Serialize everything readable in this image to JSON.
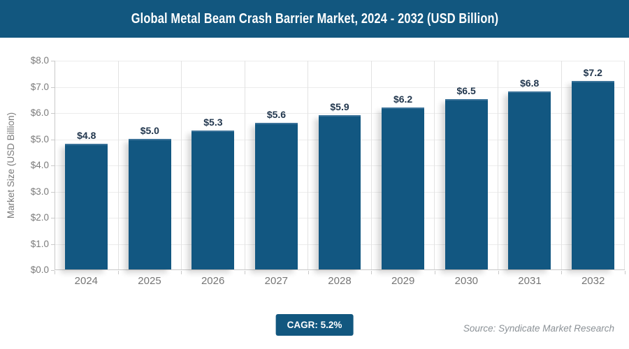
{
  "header": {
    "title": "Global Metal Beam Crash Barrier Market, 2024 - 2032 (USD Billion)",
    "bg_color": "#12577F"
  },
  "chart_data": {
    "type": "bar",
    "title": "Global Metal Beam Crash Barrier Market, 2024 - 2032 (USD Billion)",
    "categories": [
      "2024",
      "2025",
      "2026",
      "2027",
      "2028",
      "2029",
      "2030",
      "2031",
      "2032"
    ],
    "values": [
      4.8,
      5.0,
      5.3,
      5.6,
      5.9,
      6.2,
      6.5,
      6.8,
      7.2
    ],
    "value_labels": [
      "$4.8",
      "$5.0",
      "$5.3",
      "$5.6",
      "$5.9",
      "$6.2",
      "$6.5",
      "$6.8",
      "$7.2"
    ],
    "xlabel": "",
    "ylabel": "Market Size (USD Billion)",
    "ylim": [
      0,
      8
    ],
    "ytick_step": 1,
    "ytick_labels": [
      "$0.0",
      "$1.0",
      "$2.0",
      "$3.0",
      "$4.0",
      "$5.0",
      "$6.0",
      "$7.0",
      "$8.0"
    ],
    "grid": true,
    "legend": "none",
    "bar_color": "#125781",
    "value_label_color": "#22374E",
    "tick_label_color": "#7b7b7b",
    "grid_color": "#ececec",
    "axis_color": "#c9c9c9"
  },
  "footer": {
    "cagr_label": "CAGR: 5.2%",
    "badge_color": "#12577F",
    "source": "Source: Syndicate Market Research"
  }
}
